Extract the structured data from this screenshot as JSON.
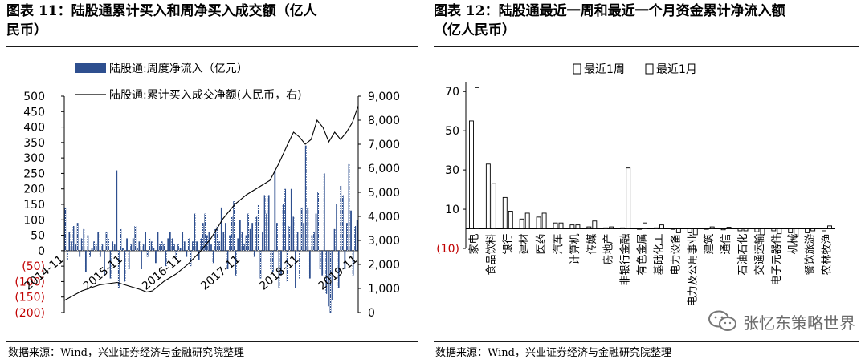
{
  "left": {
    "title_line1": "图表 11：陆股通累计买入和周净买入成交额（亿人",
    "title_line2": "民币）",
    "source": "数据来源：Wind，兴业证券经济与金融研究院整理"
  },
  "right": {
    "title_line1": "图表 12：陆股通最近一周和最近一个月资金累计净流入额",
    "title_line2": "（亿人民币）",
    "source": "数据来源：Wind，兴业证券经济与金融研究院整理"
  },
  "watermark": {
    "text": "张忆东策略世界",
    "icon": "wechat-icon"
  },
  "colors": {
    "bar": "#2e4f8f",
    "bar_light": "#ffffff",
    "line": "#000000",
    "negative_label": "#c00000"
  },
  "chart_data": [
    {
      "type": "bar",
      "legend": [
        "陆股通:周度净流入（亿元）",
        "陆股通:累计买入成交净额(人民币，右)"
      ],
      "y_left_ticks": [
        "500",
        "450",
        "400",
        "350",
        "300",
        "250",
        "200",
        "150",
        "100",
        "50",
        "0",
        "(50)",
        "(100)",
        "(150)",
        "(200)"
      ],
      "y_left_range": [
        -200,
        500
      ],
      "y_right_ticks": [
        "9,000",
        "8,000",
        "7,000",
        "6,000",
        "5,000",
        "4,000",
        "3,000",
        "2,000",
        "1,000",
        "0"
      ],
      "y_right_range": [
        0,
        9000
      ],
      "x_ticks": [
        "2014-11",
        "2015-11",
        "2016-11",
        "2017-11",
        "2018-11",
        "2019-11"
      ],
      "series": [
        {
          "name": "陆股通:周度净流入（亿元）",
          "values": [
            140,
            -30,
            60,
            30,
            80,
            20,
            90,
            -20,
            40,
            70,
            -70,
            50,
            -20,
            10,
            30,
            20,
            60,
            -20,
            20,
            -80,
            60,
            40,
            -90,
            30,
            20,
            260,
            -120,
            70,
            10,
            -100,
            40,
            -60,
            20,
            40,
            80,
            10,
            30,
            -60,
            20,
            60,
            -20,
            40,
            30,
            10,
            -40,
            60,
            20,
            30,
            20,
            -50,
            40,
            60,
            40,
            20,
            -30,
            20,
            10,
            60,
            30,
            -20,
            40,
            -50,
            30,
            120,
            30,
            -30,
            40,
            90,
            120,
            50,
            60,
            20,
            -40,
            70,
            80,
            30,
            140,
            60,
            90,
            -60,
            50,
            110,
            160,
            -80,
            40,
            100,
            60,
            20,
            50,
            120,
            70,
            90,
            -20,
            110,
            150,
            -90,
            60,
            180,
            120,
            180,
            -60,
            -70,
            260,
            90,
            -120,
            -80,
            150,
            200,
            -100,
            80,
            200,
            110,
            -120,
            60,
            -90,
            140,
            90,
            340,
            140,
            -90,
            50,
            60,
            120,
            190,
            -60,
            -80,
            250,
            -140,
            -180,
            -200,
            -160,
            70,
            150,
            -120,
            210,
            180,
            -60,
            90,
            280,
            130,
            -80,
            80,
            100
          ]
        },
        {
          "name": "陆股通:累计买入成交净额(人民币，右)",
          "x": [
            0,
            0.06,
            0.12,
            0.18,
            0.22,
            0.26,
            0.28,
            0.3,
            0.34,
            0.38,
            0.42,
            0.46,
            0.5,
            0.54,
            0.58,
            0.62,
            0.66,
            0.7,
            0.73,
            0.76,
            0.78,
            0.8,
            0.82,
            0.84,
            0.86,
            0.88,
            0.9,
            0.92,
            0.94,
            0.96,
            0.98,
            1.0
          ],
          "values": [
            500,
            900,
            1150,
            1250,
            1100,
            950,
            850,
            900,
            1300,
            1600,
            2000,
            2500,
            3100,
            3900,
            4500,
            4900,
            5200,
            5500,
            6200,
            7000,
            7500,
            7300,
            7000,
            7200,
            8000,
            7700,
            7100,
            7500,
            7200,
            7500,
            7900,
            8600
          ]
        }
      ]
    },
    {
      "type": "bar",
      "legend": [
        "最近1周",
        "最近1月"
      ],
      "categories": [
        "家电",
        "食品饮料",
        "银行",
        "建材",
        "医药",
        "汽车",
        "计算机",
        "传媒",
        "房地产",
        "非银行金融",
        "有色金属",
        "基础化工",
        "电力设备",
        "电力及公用事业",
        "建筑",
        "通信",
        "石油石化",
        "交通运输",
        "电子元器件",
        "机械",
        "餐饮旅游",
        "农林牧渔"
      ],
      "y_ticks": [
        "70",
        "50",
        "30",
        "10",
        "(10)"
      ],
      "ylim": [
        -10,
        75
      ],
      "series": [
        {
          "name": "最近1周",
          "values": [
            55,
            33,
            16,
            5,
            6,
            3,
            2,
            1,
            0.5,
            0.5,
            0,
            0.5,
            0,
            -2,
            0,
            -0.5,
            -1,
            -1.5,
            -1,
            -2,
            -2,
            -1
          ]
        },
        {
          "name": "最近1月",
          "values": [
            72,
            23,
            9,
            8,
            8,
            3,
            2,
            4,
            1,
            31,
            3,
            2,
            -2,
            -3,
            1,
            0.8,
            -1,
            -3,
            -2.5,
            -4,
            -1,
            1.5
          ]
        }
      ]
    }
  ]
}
